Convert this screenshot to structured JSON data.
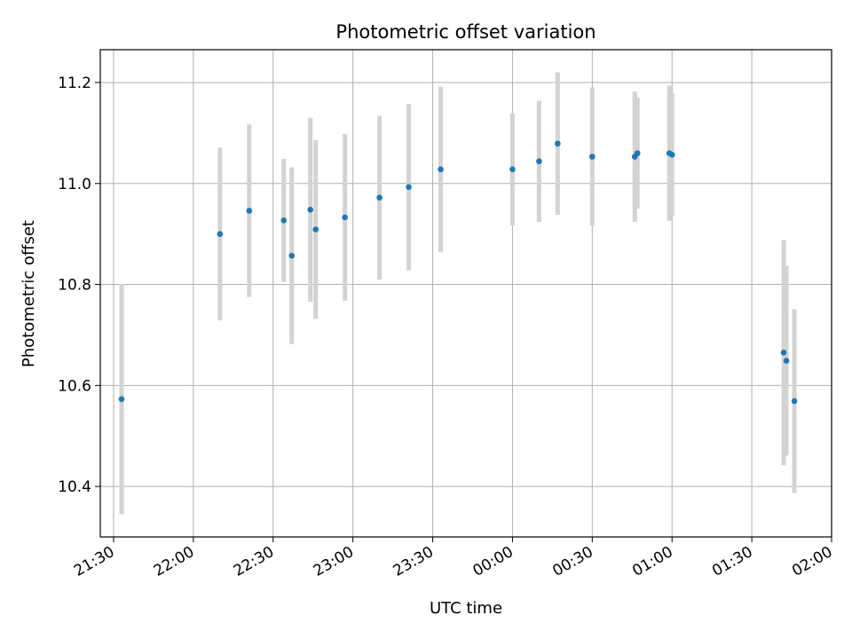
{
  "chart_data": {
    "type": "scatter",
    "title": "Photometric offset variation",
    "xlabel": "UTC time",
    "ylabel": "Photometric offset",
    "xlim": [
      "21:25",
      "02:00"
    ],
    "ylim": [
      10.3,
      11.265
    ],
    "x_ticks": [
      "21:30",
      "22:00",
      "22:30",
      "23:00",
      "23:30",
      "00:00",
      "00:30",
      "01:00",
      "01:30",
      "02:00"
    ],
    "y_ticks": [
      10.4,
      10.6,
      10.8,
      11.0,
      11.2
    ],
    "y_tick_labels": [
      "10.4",
      "10.6",
      "10.8",
      "11.0",
      "11.2"
    ],
    "grid": true,
    "point_color": "#1f77b4",
    "errorbar_color": "#d3d3d3",
    "points": [
      {
        "time": "21:33",
        "y": 10.573,
        "err": 0.228
      },
      {
        "time": "22:10",
        "y": 10.9,
        "err": 0.171
      },
      {
        "time": "22:21",
        "y": 10.946,
        "err": 0.171
      },
      {
        "time": "22:34",
        "y": 10.927,
        "err": 0.122
      },
      {
        "time": "22:37",
        "y": 10.857,
        "err": 0.175
      },
      {
        "time": "22:44",
        "y": 10.948,
        "err": 0.182
      },
      {
        "time": "22:46",
        "y": 10.909,
        "err": 0.177
      },
      {
        "time": "22:57",
        "y": 10.933,
        "err": 0.165
      },
      {
        "time": "23:10",
        "y": 10.972,
        "err": 0.162
      },
      {
        "time": "23:21",
        "y": 10.993,
        "err": 0.165
      },
      {
        "time": "23:33",
        "y": 11.028,
        "err": 0.164
      },
      {
        "time": "00:00",
        "y": 11.028,
        "err": 0.111
      },
      {
        "time": "00:10",
        "y": 11.044,
        "err": 0.12
      },
      {
        "time": "00:17",
        "y": 11.079,
        "err": 0.141
      },
      {
        "time": "00:30",
        "y": 11.053,
        "err": 0.137
      },
      {
        "time": "00:46",
        "y": 11.053,
        "err": 0.129
      },
      {
        "time": "00:47",
        "y": 11.06,
        "err": 0.11
      },
      {
        "time": "00:59",
        "y": 11.06,
        "err": 0.134
      },
      {
        "time": "01:00",
        "y": 11.057,
        "err": 0.122
      },
      {
        "time": "01:42",
        "y": 10.665,
        "err": 0.223
      },
      {
        "time": "01:43",
        "y": 10.649,
        "err": 0.188
      },
      {
        "time": "01:46",
        "y": 10.569,
        "err": 0.182
      }
    ]
  }
}
